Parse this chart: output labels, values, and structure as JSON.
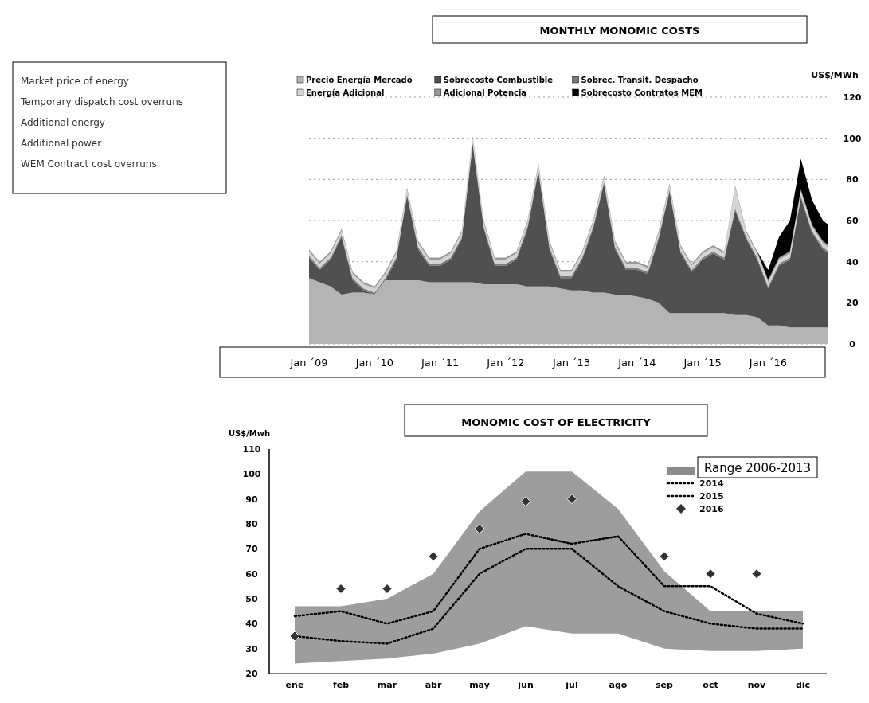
{
  "chart_data": [
    {
      "type": "area",
      "stacked": true,
      "title": "MONTHLY MONOMIC COSTS",
      "ylabel": "US$/MWh",
      "grid": "y",
      "legend": "top",
      "annotations": [
        "Market price of energy",
        "Temporary dispatch cost overruns",
        "Additional energy",
        "Additional power",
        "WEM Contract cost overruns"
      ],
      "x": [
        "2009-01",
        "2009-03",
        "2009-05",
        "2009-07",
        "2009-09",
        "2009-11",
        "2010-01",
        "2010-03",
        "2010-05",
        "2010-07",
        "2010-09",
        "2010-11",
        "2011-01",
        "2011-03",
        "2011-05",
        "2011-07",
        "2011-09",
        "2011-11",
        "2012-01",
        "2012-03",
        "2012-05",
        "2012-07",
        "2012-09",
        "2012-11",
        "2013-01",
        "2013-03",
        "2013-05",
        "2013-07",
        "2013-09",
        "2013-11",
        "2014-01",
        "2014-03",
        "2014-05",
        "2014-07",
        "2014-09",
        "2014-11",
        "2015-01",
        "2015-03",
        "2015-05",
        "2015-07",
        "2015-09",
        "2015-11",
        "2016-01",
        "2016-03",
        "2016-05",
        "2016-07",
        "2016-09",
        "2016-11",
        "2016-12"
      ],
      "xlim": [
        "2009-01",
        "2016-12"
      ],
      "xticks": [
        {
          "value": "2009-01",
          "label": "Jan ´09"
        },
        {
          "value": "2010-01",
          "label": "Jan ´10"
        },
        {
          "value": "2011-01",
          "label": "Jan ´11"
        },
        {
          "value": "2012-01",
          "label": "Jan ´12"
        },
        {
          "value": "2013-01",
          "label": "Jan ´13"
        },
        {
          "value": "2014-01",
          "label": "Jan ´14"
        },
        {
          "value": "2015-01",
          "label": "Jan ´15"
        },
        {
          "value": "2016-01",
          "label": "Jan ´16"
        }
      ],
      "ylim": [
        0,
        120
      ],
      "yticks": [
        0,
        20,
        40,
        60,
        80,
        100,
        120
      ],
      "series": [
        {
          "name": "Precio Energía Mercado",
          "color": "#b4b4b4",
          "values": [
            32,
            30,
            28,
            24,
            25,
            25,
            24,
            31,
            31,
            31,
            31,
            30,
            30,
            30,
            30,
            30,
            29,
            29,
            29,
            29,
            28,
            28,
            28,
            27,
            26,
            26,
            25,
            25,
            24,
            24,
            23,
            22,
            20,
            15,
            15,
            15,
            15,
            15,
            15,
            14,
            14,
            13,
            9,
            9,
            8,
            8,
            8,
            8,
            8
          ]
        },
        {
          "name": "Sobrecosto Combustible",
          "color": "#505050",
          "values": [
            10,
            6,
            13,
            28,
            6,
            1,
            0,
            0,
            10,
            41,
            15,
            8,
            8,
            11,
            21,
            67,
            27,
            9,
            9,
            12,
            28,
            56,
            18,
            5,
            6,
            15,
            31,
            53,
            22,
            12,
            13,
            12,
            31,
            59,
            29,
            20,
            26,
            29,
            26,
            51,
            37,
            28,
            18,
            29,
            33,
            63,
            46,
            38,
            36
          ]
        },
        {
          "name": "Sobrec. Transit. Despacho",
          "color": "#7a7a7a",
          "values": [
            1,
            1,
            1,
            1,
            1,
            1,
            1,
            1,
            1,
            1,
            1,
            1,
            1,
            1,
            1,
            1,
            1,
            1,
            1,
            1,
            1,
            1,
            1,
            1,
            1,
            1,
            1,
            1,
            1,
            1,
            1,
            1,
            1,
            1,
            1,
            1,
            1,
            1,
            1,
            1,
            1,
            1,
            1,
            1,
            1,
            1,
            1,
            1,
            1
          ]
        },
        {
          "name": "Energía Adicional",
          "color": "#d4d4d4",
          "values": [
            2,
            2,
            2,
            2,
            2,
            2,
            2,
            2,
            2,
            2,
            2,
            2,
            2,
            2,
            2,
            2,
            2,
            2,
            2,
            2,
            2,
            2,
            2,
            2,
            2,
            2,
            2,
            2,
            2,
            2,
            2,
            2,
            2,
            2,
            2,
            2,
            2,
            2,
            2,
            10,
            2,
            2,
            2,
            2,
            2,
            2,
            2,
            2,
            2
          ]
        },
        {
          "name": "Adicional Potencia",
          "color": "#999999",
          "values": [
            1,
            1,
            1,
            1,
            1,
            1,
            1,
            1,
            1,
            1,
            1,
            1,
            1,
            1,
            1,
            1,
            1,
            1,
            1,
            1,
            1,
            1,
            1,
            1,
            1,
            1,
            1,
            1,
            1,
            1,
            1,
            1,
            1,
            1,
            1,
            1,
            1,
            1,
            1,
            1,
            1,
            1,
            1,
            1,
            1,
            1,
            1,
            1,
            1
          ]
        },
        {
          "name": "Sobrecosto Contratos MEM",
          "color": "#000000",
          "values": [
            0,
            0,
            0,
            0,
            0,
            0,
            0,
            0,
            0,
            0,
            0,
            0,
            0,
            0,
            0,
            0,
            0,
            0,
            0,
            0,
            0,
            0,
            0,
            0,
            0,
            0,
            0,
            0,
            0,
            0,
            0,
            0,
            0,
            0,
            0,
            0,
            0,
            0,
            0,
            0,
            0,
            0,
            5,
            10,
            15,
            15,
            12,
            10,
            10
          ]
        }
      ]
    },
    {
      "type": "line",
      "title": "MONOMIC COST OF ELECTRICITY",
      "ylabel": "US$/Mwh",
      "legend": "top right",
      "categories": [
        "ene",
        "feb",
        "mar",
        "abr",
        "may",
        "jun",
        "jul",
        "ago",
        "sep",
        "oct",
        "nov",
        "dic"
      ],
      "ylim": [
        20,
        110
      ],
      "yticks": [
        20,
        30,
        40,
        50,
        60,
        70,
        80,
        90,
        100,
        110
      ],
      "series": [
        {
          "name": "Range 2006-2013",
          "type": "area",
          "color": "#8c8c8c",
          "values": [
            null,
            null,
            null,
            null,
            null,
            null,
            null,
            null,
            null,
            null,
            null,
            null
          ],
          "lower": [
            24,
            25,
            26,
            28,
            32,
            39,
            36,
            36,
            30,
            29,
            29,
            30
          ],
          "upper": [
            47,
            47,
            50,
            60,
            85,
            101,
            101,
            86,
            61,
            45,
            45,
            45
          ]
        },
        {
          "name": "2014",
          "type": "line",
          "color": "#000000",
          "line_style": "dotted",
          "marker": "none",
          "values": [
            43,
            45,
            40,
            45,
            70,
            76,
            72,
            75,
            55,
            55,
            44,
            40
          ]
        },
        {
          "name": "2015",
          "type": "line",
          "color": "#000000",
          "line_style": "dotted",
          "marker": "none",
          "values": [
            35,
            33,
            32,
            38,
            60,
            70,
            70,
            55,
            45,
            40,
            38,
            38
          ]
        },
        {
          "name": "2016",
          "type": "scatter",
          "color": "#333333",
          "marker": "diamond",
          "values": [
            35,
            54,
            54,
            67,
            78,
            89,
            90,
            null,
            67,
            60,
            60,
            null
          ]
        }
      ]
    }
  ]
}
